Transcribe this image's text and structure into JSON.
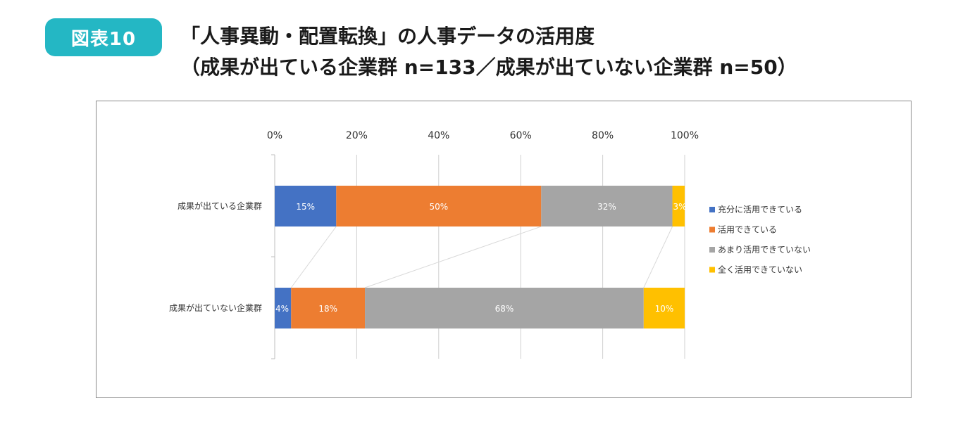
{
  "header": {
    "badge": "図表10",
    "title_line1": "「人事異動・配置転換」の人事データの活用度",
    "title_line2": "（成果が出ている企業群 n=133／成果が出ていない企業群 n=50）"
  },
  "chart_data": {
    "type": "bar",
    "orientation": "horizontal",
    "stacked": "percent",
    "categories": [
      "成果が出ている企業群",
      "成果が出ていない企業群"
    ],
    "series": [
      {
        "name": "充分に活用できている",
        "values": [
          15,
          4
        ],
        "labels": [
          "15%",
          "4%"
        ],
        "color": "#4472c4"
      },
      {
        "name": "活用できている",
        "values": [
          50,
          18
        ],
        "labels": [
          "50%",
          "18%"
        ],
        "color": "#ed7d31"
      },
      {
        "name": "あまり活用できていない",
        "values": [
          32,
          68
        ],
        "labels": [
          "32%",
          "68%"
        ],
        "color": "#a5a5a5"
      },
      {
        "name": "全く活用できていない",
        "values": [
          3,
          10
        ],
        "labels": [
          "3%",
          "10%"
        ],
        "color": "#ffc000"
      }
    ],
    "xlim": [
      0,
      100
    ],
    "ticks": [
      "0%",
      "20%",
      "40%",
      "60%",
      "80%",
      "100%"
    ],
    "gridlines": true,
    "series_lines": true,
    "legend_position": "right"
  }
}
